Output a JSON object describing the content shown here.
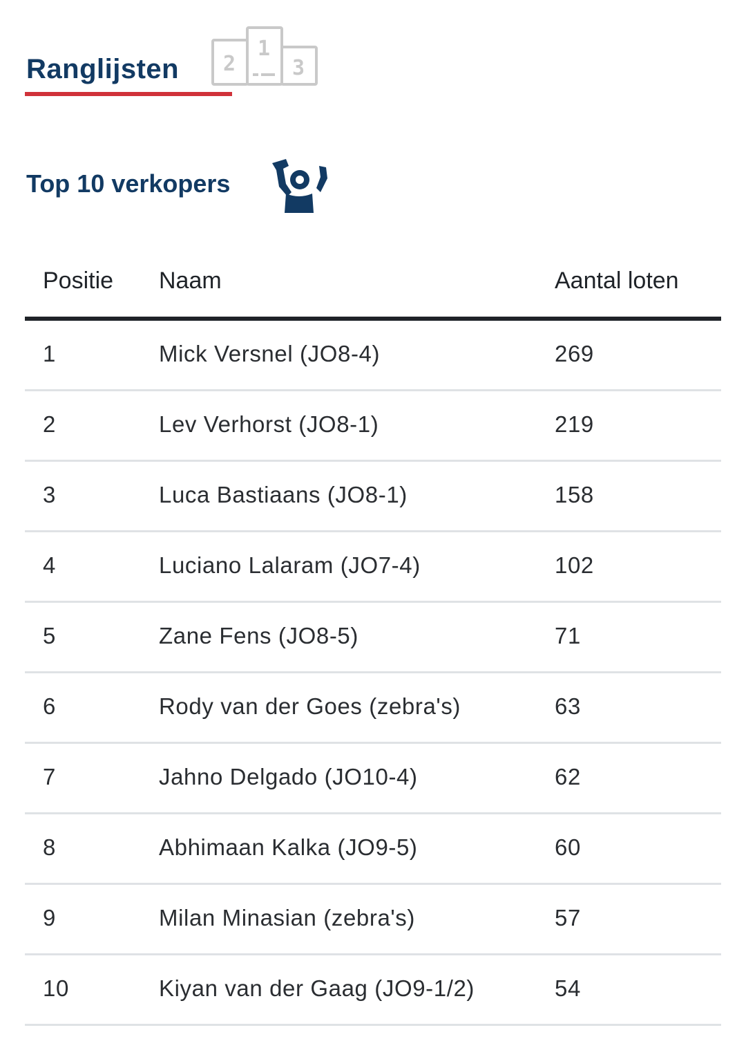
{
  "header": {
    "title": "Ranglijsten",
    "icon": "podium-icon",
    "podium_labels": [
      "2",
      "1",
      "3"
    ],
    "accent_color": "#d0323a",
    "title_color": "#123a63"
  },
  "section": {
    "title": "Top 10 verkopers",
    "icon": "cheering-person-icon"
  },
  "table": {
    "columns": {
      "position": "Positie",
      "name": "Naam",
      "count": "Aantal loten"
    },
    "rows": [
      {
        "position": "1",
        "name": "Mick Versnel (JO8-4)",
        "count": "269"
      },
      {
        "position": "2",
        "name": "Lev Verhorst (JO8-1)",
        "count": "219"
      },
      {
        "position": "3",
        "name": "Luca Bastiaans (JO8-1)",
        "count": "158"
      },
      {
        "position": "4",
        "name": "Luciano Lalaram (JO7-4)",
        "count": "102"
      },
      {
        "position": "5",
        "name": "Zane Fens (JO8-5)",
        "count": "71"
      },
      {
        "position": "6",
        "name": "Rody van der Goes (zebra's)",
        "count": "63"
      },
      {
        "position": "7",
        "name": "Jahno Delgado (JO10-4)",
        "count": "62"
      },
      {
        "position": "8",
        "name": "Abhimaan Kalka (JO9-5)",
        "count": "60"
      },
      {
        "position": "9",
        "name": "Milan Minasian (zebra's)",
        "count": "57"
      },
      {
        "position": "10",
        "name": "Kiyan van der Gaag (JO9-1/2)",
        "count": "54"
      }
    ]
  }
}
